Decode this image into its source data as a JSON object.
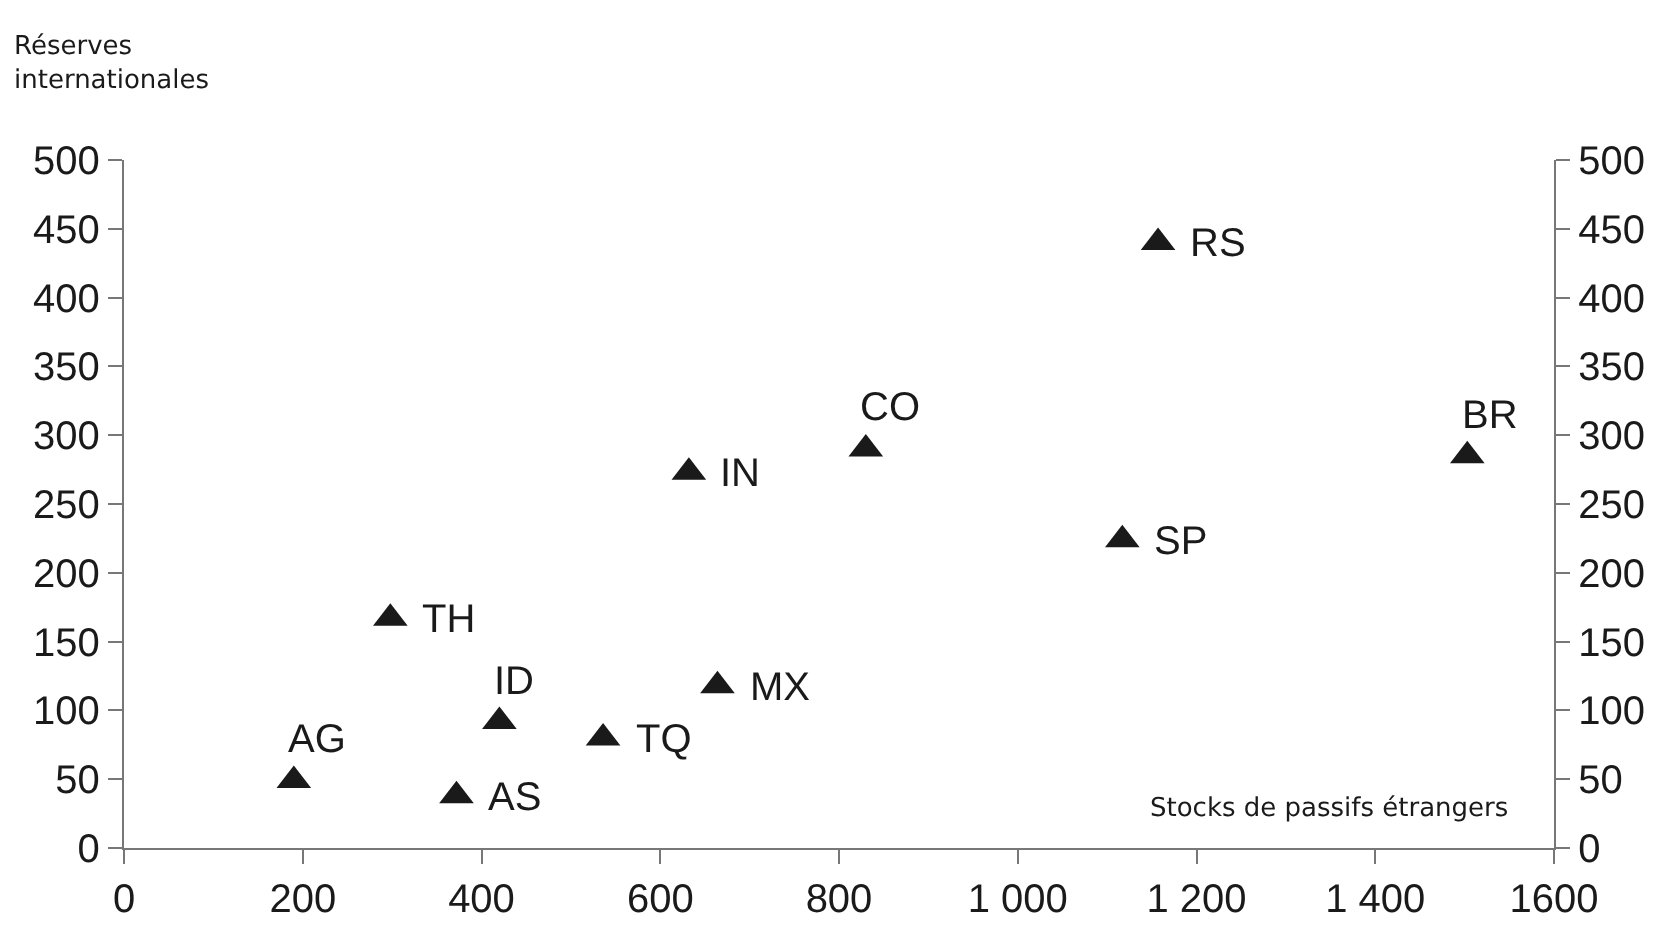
{
  "chart_data": {
    "type": "scatter",
    "xlabel": "Stocks de passifs étrangers",
    "ylabel": "Réserves internationales",
    "series": [
      {
        "color": "#1a1a1a",
        "x": [
          190,
          372,
          420,
          298,
          536,
          664,
          632,
          830,
          1157,
          1117,
          1503
        ],
        "values": [
          49,
          38,
          92,
          167,
          80,
          118,
          273,
          290,
          440,
          224,
          285
        ]
      }
    ],
    "annotations": [
      {
        "text": "AG",
        "x": 190,
        "y": 49
      },
      {
        "text": "AS",
        "x": 372,
        "y": 38
      },
      {
        "text": "ID",
        "x": 420,
        "y": 92
      },
      {
        "text": "TH",
        "x": 298,
        "y": 167
      },
      {
        "text": "TQ",
        "x": 536,
        "y": 80
      },
      {
        "text": "MX",
        "x": 664,
        "y": 118
      },
      {
        "text": "IN",
        "x": 632,
        "y": 273
      },
      {
        "text": "CO",
        "x": 830,
        "y": 290
      },
      {
        "text": "RS",
        "x": 1157,
        "y": 440
      },
      {
        "text": "SP",
        "x": 1117,
        "y": 224
      },
      {
        "text": "BR",
        "x": 1503,
        "y": 285
      }
    ],
    "marker": "triangle",
    "grid": false,
    "xlim": [
      0,
      1600
    ],
    "xticks": [
      0,
      200,
      400,
      600,
      800,
      {
        "value": 1000,
        "label": "1 000"
      },
      {
        "value": 1200,
        "label": "1 200"
      },
      {
        "value": 1400,
        "label": "1 400"
      },
      1600
    ],
    "ylim": [
      0,
      500
    ],
    "yticks": [
      0,
      50,
      100,
      150,
      200,
      250,
      300,
      350,
      400,
      450,
      500
    ],
    "y2lim": [
      0,
      500
    ],
    "y2ticks": [
      0,
      50,
      100,
      150,
      200,
      250,
      300,
      350,
      400,
      450,
      500
    ]
  }
}
